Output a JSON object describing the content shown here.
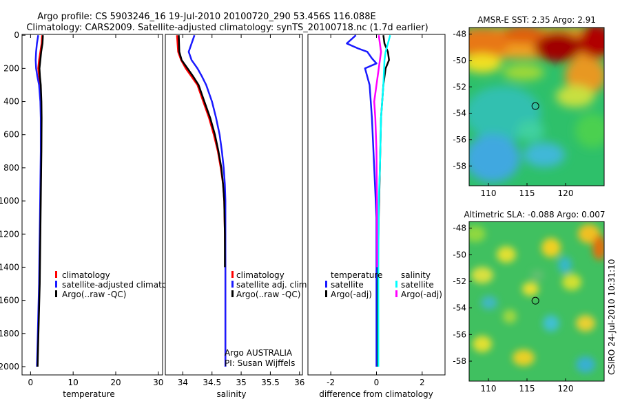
{
  "header": {
    "title_line1": "Argo profile: CS 5903246_16 19-Jul-2010 20100720_290 53.456S 116.088E",
    "title_line2": "Climatology: CARS2009. Satellite-adjusted climatology: synTS_20100718.nc (1.7d earlier)"
  },
  "side_text": "CSIRO 24-Jul-2010 10:31:10",
  "colors": {
    "climatology": "#ff0000",
    "satellite": "#1a1aff",
    "argo": "#000000",
    "salinity_satellite": "#00ffff",
    "salinity_argo": "#ff00ff"
  },
  "chart_data": [
    {
      "type": "line",
      "xlabel": "temperature",
      "ylabel": "",
      "xlim": [
        -2,
        31
      ],
      "ylim": [
        2050,
        -5
      ],
      "xticks": [
        "0",
        "10",
        "20",
        "30"
      ],
      "yticks": [
        "0",
        "200",
        "400",
        "600",
        "800",
        "1000",
        "1200",
        "1400",
        "1600",
        "1800",
        "2000"
      ],
      "legend": [
        "climatology",
        "satellite-adjusted climatology",
        "Argo(..raw -QC)"
      ],
      "legend_position": "lower-right",
      "series": [
        {
          "name": "climatology",
          "color_key": "climatology",
          "points": [
            [
              2.7,
              0
            ],
            [
              2.6,
              50
            ],
            [
              2.3,
              100
            ],
            [
              2.0,
              150
            ],
            [
              1.8,
              200
            ],
            [
              2.0,
              250
            ],
            [
              2.3,
              300
            ],
            [
              2.5,
              400
            ],
            [
              2.55,
              500
            ],
            [
              2.5,
              700
            ],
            [
              2.4,
              900
            ],
            [
              2.3,
              1100
            ],
            [
              2.2,
              1300
            ],
            [
              2.1,
              1500
            ],
            [
              1.9,
              1700
            ],
            [
              1.7,
              1900
            ],
            [
              1.6,
              2000
            ]
          ]
        },
        {
          "name": "satellite-adjusted climatology",
          "color_key": "satellite",
          "points": [
            [
              1.8,
              0
            ],
            [
              1.5,
              50
            ],
            [
              1.3,
              100
            ],
            [
              1.2,
              150
            ],
            [
              1.3,
              200
            ],
            [
              1.6,
              250
            ],
            [
              2.0,
              300
            ],
            [
              2.3,
              400
            ],
            [
              2.4,
              500
            ],
            [
              2.4,
              700
            ],
            [
              2.3,
              900
            ],
            [
              2.2,
              1100
            ],
            [
              2.1,
              1300
            ],
            [
              2.0,
              1500
            ],
            [
              1.8,
              1700
            ],
            [
              1.6,
              1900
            ],
            [
              1.5,
              2000
            ]
          ]
        },
        {
          "name": "Argo(..raw -QC)",
          "color_key": "argo",
          "points": [
            [
              2.9,
              0
            ],
            [
              2.8,
              50
            ],
            [
              2.5,
              100
            ],
            [
              2.3,
              150
            ],
            [
              2.1,
              200
            ],
            [
              2.2,
              250
            ],
            [
              2.4,
              300
            ],
            [
              2.55,
              400
            ],
            [
              2.6,
              500
            ],
            [
              2.55,
              700
            ],
            [
              2.45,
              900
            ],
            [
              2.35,
              1100
            ],
            [
              2.25,
              1300
            ],
            [
              2.15,
              1500
            ],
            [
              1.95,
              1700
            ],
            [
              1.75,
              1900
            ],
            [
              1.65,
              2000
            ]
          ]
        }
      ]
    },
    {
      "type": "line",
      "xlabel": "salinity",
      "ylabel": "",
      "xlim": [
        33.7,
        36.05
      ],
      "ylim": [
        2050,
        -5
      ],
      "xticks": [
        "34",
        "34.5",
        "35",
        "35.5",
        "36"
      ],
      "legend": [
        "climatology",
        "satellite adj. clim.",
        "Argo(..raw -QC)"
      ],
      "legend_position": "lower-right",
      "annotation": [
        "Argo AUSTRALIA",
        "PI: Susan Wijffels"
      ],
      "series": [
        {
          "name": "climatology",
          "color_key": "climatology",
          "points": [
            [
              33.9,
              0
            ],
            [
              33.92,
              100
            ],
            [
              33.97,
              150
            ],
            [
              34.05,
              200
            ],
            [
              34.15,
              250
            ],
            [
              34.25,
              300
            ],
            [
              34.35,
              400
            ],
            [
              34.45,
              500
            ],
            [
              34.53,
              600
            ],
            [
              34.6,
              700
            ],
            [
              34.65,
              800
            ],
            [
              34.69,
              900
            ],
            [
              34.71,
              1000
            ],
            [
              34.72,
              1200
            ],
            [
              34.73,
              1400
            ],
            [
              34.73,
              1700
            ],
            [
              34.73,
              2000
            ]
          ]
        },
        {
          "name": "satellite adj. clim.",
          "color_key": "satellite",
          "points": [
            [
              34.2,
              0
            ],
            [
              34.15,
              50
            ],
            [
              34.1,
              100
            ],
            [
              34.15,
              150
            ],
            [
              34.25,
              200
            ],
            [
              34.33,
              250
            ],
            [
              34.4,
              300
            ],
            [
              34.5,
              400
            ],
            [
              34.57,
              500
            ],
            [
              34.63,
              600
            ],
            [
              34.67,
              700
            ],
            [
              34.7,
              800
            ],
            [
              34.72,
              900
            ],
            [
              34.73,
              1000
            ],
            [
              34.73,
              1200
            ],
            [
              34.73,
              1500
            ],
            [
              34.73,
              2000
            ]
          ]
        },
        {
          "name": "Argo(..raw -QC)",
          "color_key": "argo",
          "points": [
            [
              33.93,
              0
            ],
            [
              33.94,
              100
            ],
            [
              33.98,
              150
            ],
            [
              34.08,
              200
            ],
            [
              34.18,
              250
            ],
            [
              34.27,
              300
            ],
            [
              34.37,
              400
            ],
            [
              34.47,
              500
            ],
            [
              34.55,
              600
            ],
            [
              34.61,
              700
            ],
            [
              34.66,
              800
            ],
            [
              34.69,
              900
            ],
            [
              34.71,
              1000
            ],
            [
              34.72,
              1200
            ],
            [
              34.72,
              1400
            ]
          ]
        }
      ]
    },
    {
      "type": "line",
      "xlabel": "difference from climatology",
      "ylabel": "",
      "xlim": [
        -3,
        3
      ],
      "ylim": [
        2050,
        -5
      ],
      "xticks": [
        "-2",
        "0",
        "2"
      ],
      "legend": [
        "temperature",
        "satellite",
        "Argo(-adj)",
        "salinity",
        "satellite",
        "Argo(-adj)"
      ],
      "legend_position": "lower-center",
      "series": [
        {
          "name": "temperature satellite",
          "color_key": "satellite",
          "points": [
            [
              -0.9,
              0
            ],
            [
              -1.3,
              50
            ],
            [
              -0.8,
              80
            ],
            [
              -0.4,
              100
            ],
            [
              -0.2,
              140
            ],
            [
              0,
              170
            ],
            [
              -0.5,
              200
            ],
            [
              -0.3,
              300
            ],
            [
              -0.2,
              500
            ],
            [
              -0.1,
              800
            ],
            [
              0,
              1100
            ],
            [
              0,
              1500
            ],
            [
              0,
              2000
            ]
          ]
        },
        {
          "name": "temperature Argo(-adj)",
          "color_key": "argo",
          "points": [
            [
              0.3,
              0
            ],
            [
              0.35,
              50
            ],
            [
              0.5,
              100
            ],
            [
              0.55,
              150
            ],
            [
              0.4,
              200
            ],
            [
              0.3,
              300
            ],
            [
              0.2,
              500
            ],
            [
              0.15,
              800
            ],
            [
              0.1,
              1100
            ],
            [
              0.05,
              1500
            ],
            [
              0.05,
              2000
            ]
          ]
        },
        {
          "name": "salinity satellite",
          "color_key": "salinity_satellite",
          "points": [
            [
              0.6,
              0
            ],
            [
              0.5,
              50
            ],
            [
              0.4,
              100
            ],
            [
              0.35,
              150
            ],
            [
              0.3,
              300
            ],
            [
              0.2,
              500
            ],
            [
              0.15,
              800
            ],
            [
              0.1,
              1000
            ],
            [
              0.08,
              1400
            ],
            [
              0.08,
              2000
            ]
          ]
        },
        {
          "name": "salinity Argo(-adj)",
          "color_key": "salinity_argo",
          "points": [
            [
              0.1,
              0
            ],
            [
              0.2,
              100
            ],
            [
              0.1,
              200
            ],
            [
              0,
              300
            ],
            [
              -0.1,
              400
            ],
            [
              -0.05,
              500
            ],
            [
              0,
              700
            ],
            [
              0.02,
              1000
            ],
            [
              0.03,
              1400
            ]
          ]
        }
      ]
    },
    {
      "type": "heatmap",
      "title": "AMSR-E SST: 2.35  Argo: 2.91",
      "xticks": [
        "110",
        "115",
        "120"
      ],
      "yticks": [
        "-48",
        "-50",
        "-52",
        "-54",
        "-56",
        "-58"
      ],
      "xlim": [
        107.5,
        125
      ],
      "ylim": [
        -59.5,
        -47.5
      ],
      "argo_position": [
        116.088,
        -53.456
      ]
    },
    {
      "type": "heatmap",
      "title": "Altimetric SLA: -0.088  Argo: 0.007",
      "xticks": [
        "110",
        "115",
        "120"
      ],
      "yticks": [
        "-48",
        "-50",
        "-52",
        "-54",
        "-56",
        "-58"
      ],
      "xlim": [
        107.5,
        125
      ],
      "ylim": [
        -59.5,
        -47.5
      ],
      "argo_position": [
        116.088,
        -53.456
      ]
    }
  ]
}
